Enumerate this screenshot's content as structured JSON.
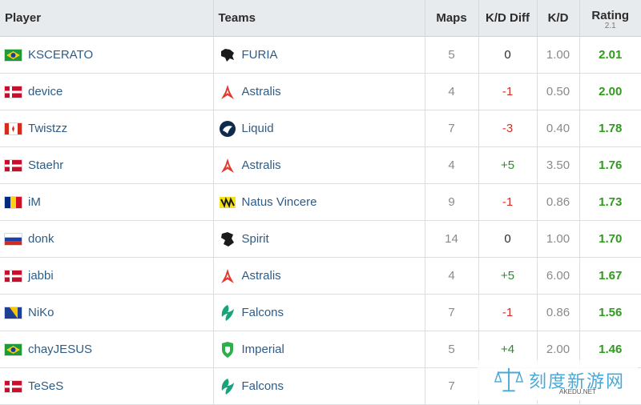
{
  "headers": {
    "player": "Player",
    "teams": "Teams",
    "maps": "Maps",
    "kd_diff": "K/D Diff",
    "kd": "K/D",
    "rating": "Rating",
    "rating_version": "2.1"
  },
  "rows": [
    {
      "player": "KSCERATO",
      "flag": "brazil",
      "team": "FURIA",
      "team_icon": "furia-logo-icon",
      "maps": "5",
      "kd_diff": "0",
      "kd": "1.00",
      "rating": "2.01"
    },
    {
      "player": "device",
      "flag": "denmark",
      "team": "Astralis",
      "team_icon": "astralis-logo-icon",
      "maps": "4",
      "kd_diff": "-1",
      "kd": "0.50",
      "rating": "2.00"
    },
    {
      "player": "Twistzz",
      "flag": "canada",
      "team": "Liquid",
      "team_icon": "liquid-logo-icon",
      "maps": "7",
      "kd_diff": "-3",
      "kd": "0.40",
      "rating": "1.78"
    },
    {
      "player": "Staehr",
      "flag": "denmark",
      "team": "Astralis",
      "team_icon": "astralis-logo-icon",
      "maps": "4",
      "kd_diff": "+5",
      "kd": "3.50",
      "rating": "1.76"
    },
    {
      "player": "iM",
      "flag": "romania",
      "team": "Natus Vincere",
      "team_icon": "navi-logo-icon",
      "maps": "9",
      "kd_diff": "-1",
      "kd": "0.86",
      "rating": "1.73"
    },
    {
      "player": "donk",
      "flag": "russia",
      "team": "Spirit",
      "team_icon": "spirit-logo-icon",
      "maps": "14",
      "kd_diff": "0",
      "kd": "1.00",
      "rating": "1.70"
    },
    {
      "player": "jabbi",
      "flag": "denmark",
      "team": "Astralis",
      "team_icon": "astralis-logo-icon",
      "maps": "4",
      "kd_diff": "+5",
      "kd": "6.00",
      "rating": "1.67"
    },
    {
      "player": "NiKo",
      "flag": "bosnia",
      "team": "Falcons",
      "team_icon": "falcons-logo-icon",
      "maps": "7",
      "kd_diff": "-1",
      "kd": "0.86",
      "rating": "1.56"
    },
    {
      "player": "chayJESUS",
      "flag": "brazil",
      "team": "Imperial",
      "team_icon": "imperial-logo-icon",
      "maps": "5",
      "kd_diff": "+4",
      "kd": "2.00",
      "rating": "1.46"
    },
    {
      "player": "TeSeS",
      "flag": "denmark",
      "team": "Falcons",
      "team_icon": "falcons-logo-icon",
      "maps": "7",
      "kd_diff": "",
      "kd": "",
      "rating": ""
    }
  ],
  "watermark": {
    "main": "刻度新游网",
    "sub": "AKEDU.NET"
  },
  "colors": {
    "positive": "#2e8a2e",
    "negative": "#d4312a",
    "rating": "#2f9a1e",
    "link": "#2d5d86",
    "header_bg": "#e8ebee"
  }
}
